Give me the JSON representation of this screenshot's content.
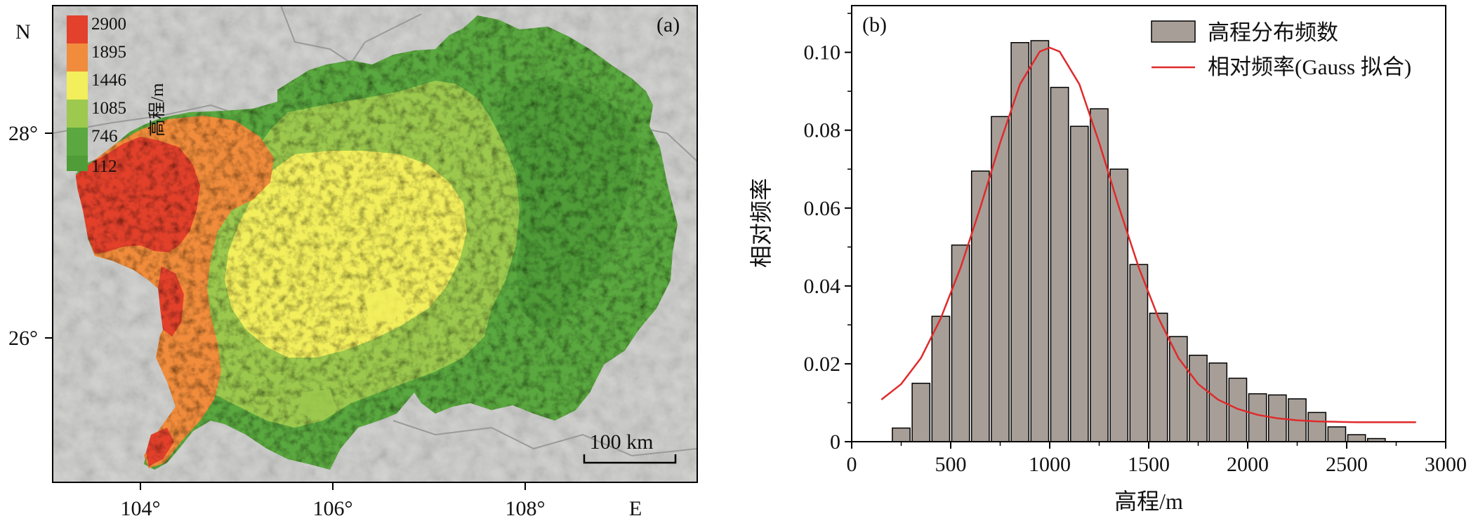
{
  "panel_a": {
    "label": "(a)",
    "north_label": "N",
    "east_label": "E",
    "lat_ticks": [
      "28°",
      "26°"
    ],
    "lon_ticks": [
      "104°",
      "106°",
      "108°"
    ],
    "scale_bar_label": "100 km",
    "legend_title": "高程/m",
    "legend_values": [
      "2900",
      "1895",
      "1446",
      "1085",
      "746",
      "112"
    ],
    "legend_colors": [
      "#e3412c",
      "#f08c3b",
      "#f2ee5c",
      "#9cc94e",
      "#5aa83f",
      "#4f9c38"
    ],
    "colors": {
      "hillshade": "#d4d4d2",
      "border": "#9a9a9a"
    }
  },
  "panel_b": {
    "label": "(b)",
    "y_tick_labels": [
      "0",
      "0.02",
      "0.04",
      "0.06",
      "0.08",
      "0.10"
    ],
    "x_tick_labels": [
      "0",
      "500",
      "1000",
      "1500",
      "2000",
      "2500",
      "3000"
    ],
    "legend": {
      "bars": "高程分布频数",
      "curve": "相对频率(Gauss 拟合)"
    }
  },
  "chart_data": {
    "type": "bar",
    "xlabel": "高程/m",
    "ylabel": "相对频率",
    "xlim": [
      0,
      3000
    ],
    "ylim": [
      0,
      0.112
    ],
    "x_ticks": [
      0,
      500,
      1000,
      1500,
      2000,
      2500,
      3000
    ],
    "y_ticks": [
      0,
      0.02,
      0.04,
      0.06,
      0.08,
      0.1
    ],
    "bin_width": 100,
    "bin_centers": [
      250,
      350,
      450,
      550,
      650,
      750,
      850,
      950,
      1050,
      1150,
      1250,
      1350,
      1450,
      1550,
      1650,
      1750,
      1850,
      1950,
      2050,
      2150,
      2250,
      2350,
      2450,
      2550,
      2650
    ],
    "series": [
      {
        "name": "高程分布频数",
        "type": "bar",
        "color": "#a89e98",
        "values": [
          0.0035,
          0.015,
          0.0322,
          0.0505,
          0.0695,
          0.0835,
          0.1025,
          0.103,
          0.091,
          0.081,
          0.0855,
          0.07,
          0.0455,
          0.033,
          0.027,
          0.0222,
          0.0202,
          0.0163,
          0.0123,
          0.012,
          0.011,
          0.0075,
          0.0038,
          0.0018,
          0.0008
        ]
      },
      {
        "name": "相对频率(Gauss 拟合)",
        "type": "line",
        "color": "#e02a2a",
        "x": [
          150,
          250,
          350,
          450,
          550,
          650,
          750,
          850,
          950,
          1000,
          1050,
          1150,
          1250,
          1350,
          1450,
          1550,
          1650,
          1750,
          1850,
          1950,
          2050,
          2150,
          2250,
          2350,
          2450,
          2550,
          2650,
          2750,
          2850
        ],
        "y": [
          0.0108,
          0.0148,
          0.0215,
          0.0317,
          0.0447,
          0.0602,
          0.0768,
          0.0918,
          0.1002,
          0.1012,
          0.1002,
          0.0918,
          0.0768,
          0.0602,
          0.0447,
          0.0317,
          0.0215,
          0.0148,
          0.0108,
          0.0084,
          0.0069,
          0.006,
          0.0055,
          0.0052,
          0.0051,
          0.005,
          0.005,
          0.005,
          0.005
        ]
      }
    ]
  }
}
